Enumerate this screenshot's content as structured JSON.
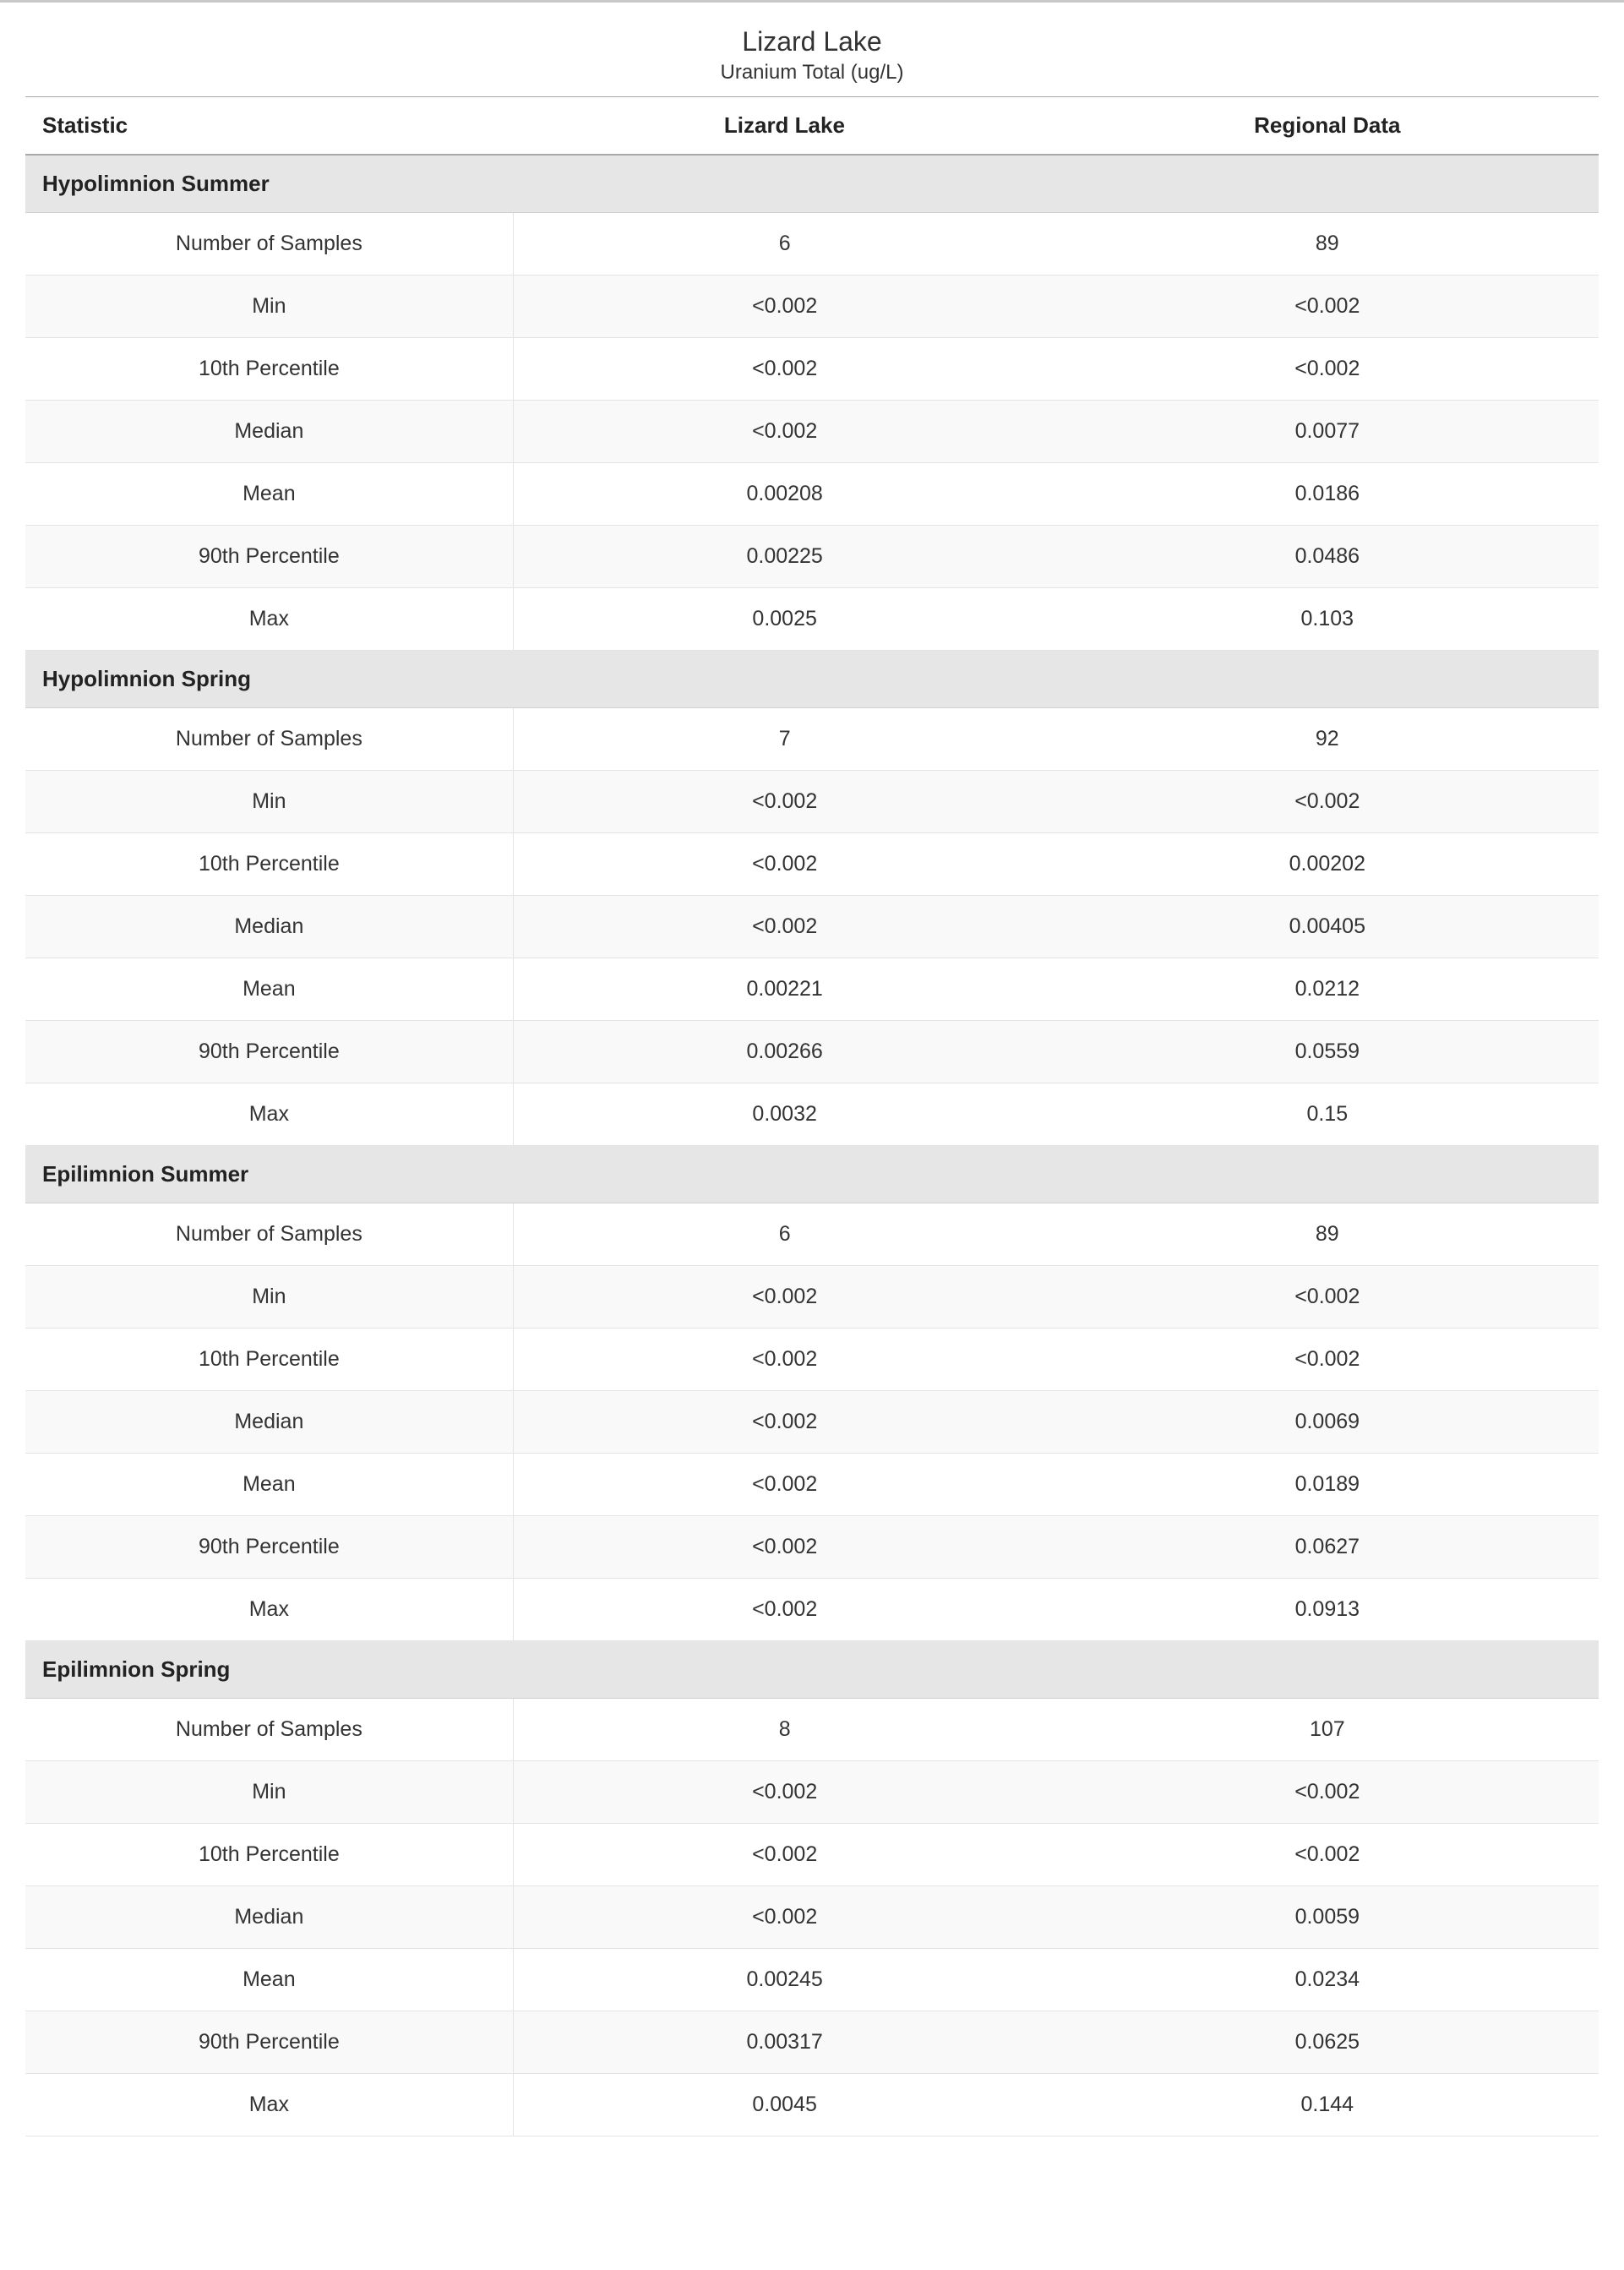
{
  "title": "Lizard Lake",
  "subtitle": "Uranium Total (ug/L)",
  "columns": [
    "Statistic",
    "Lizard Lake",
    "Regional Data"
  ],
  "stat_labels": [
    "Number of Samples",
    "Min",
    "10th Percentile",
    "Median",
    "Mean",
    "90th Percentile",
    "Max"
  ],
  "colors": {
    "border_top": "#c8c8c8",
    "header_border": "#a8a8a8",
    "section_bg": "#e6e6e6",
    "stripe_bg": "#f9f9f9",
    "row_border": "#e4e4e4",
    "text": "#333333",
    "text_strong": "#222222",
    "background": "#ffffff"
  },
  "font": {
    "title_size": 32,
    "subtitle_size": 24,
    "header_size": 26,
    "section_size": 26,
    "cell_size": 25,
    "family": "Segoe UI"
  },
  "sections": [
    {
      "name": "Hypolimnion Summer",
      "rows": [
        [
          "6",
          "89"
        ],
        [
          "<0.002",
          "<0.002"
        ],
        [
          "<0.002",
          "<0.002"
        ],
        [
          "<0.002",
          "0.0077"
        ],
        [
          "0.00208",
          "0.0186"
        ],
        [
          "0.00225",
          "0.0486"
        ],
        [
          "0.0025",
          "0.103"
        ]
      ]
    },
    {
      "name": "Hypolimnion Spring",
      "rows": [
        [
          "7",
          "92"
        ],
        [
          "<0.002",
          "<0.002"
        ],
        [
          "<0.002",
          "0.00202"
        ],
        [
          "<0.002",
          "0.00405"
        ],
        [
          "0.00221",
          "0.0212"
        ],
        [
          "0.00266",
          "0.0559"
        ],
        [
          "0.0032",
          "0.15"
        ]
      ]
    },
    {
      "name": "Epilimnion Summer",
      "rows": [
        [
          "6",
          "89"
        ],
        [
          "<0.002",
          "<0.002"
        ],
        [
          "<0.002",
          "<0.002"
        ],
        [
          "<0.002",
          "0.0069"
        ],
        [
          "<0.002",
          "0.0189"
        ],
        [
          "<0.002",
          "0.0627"
        ],
        [
          "<0.002",
          "0.0913"
        ]
      ]
    },
    {
      "name": "Epilimnion Spring",
      "rows": [
        [
          "8",
          "107"
        ],
        [
          "<0.002",
          "<0.002"
        ],
        [
          "<0.002",
          "<0.002"
        ],
        [
          "<0.002",
          "0.0059"
        ],
        [
          "0.00245",
          "0.0234"
        ],
        [
          "0.00317",
          "0.0625"
        ],
        [
          "0.0045",
          "0.144"
        ]
      ]
    }
  ]
}
